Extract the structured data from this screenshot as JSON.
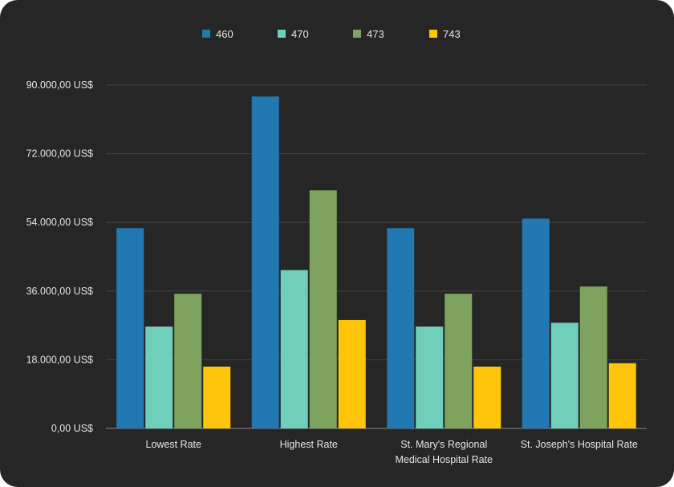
{
  "chart_data": {
    "type": "bar",
    "title": "",
    "xlabel": "",
    "ylabel": "",
    "categories": [
      [
        "Lowest Rate"
      ],
      [
        "Highest Rate"
      ],
      [
        "St. Mary's Regional",
        "Medical Hospital Rate"
      ],
      [
        "St. Joseph's Hospital Rate"
      ]
    ],
    "series": [
      {
        "name": "460",
        "color": "#2278b0",
        "values": [
          52500,
          87000,
          52500,
          55000
        ]
      },
      {
        "name": "470",
        "color": "#6fcfbb",
        "values": [
          26700,
          41500,
          26700,
          27700
        ]
      },
      {
        "name": "473",
        "color": "#7ea35e",
        "values": [
          35300,
          62400,
          35300,
          37200
        ]
      },
      {
        "name": "743",
        "color": "#ffc50a",
        "values": [
          16200,
          28400,
          16200,
          17100
        ]
      }
    ],
    "ylim": [
      0,
      90000
    ],
    "yticks": [
      0,
      18000,
      36000,
      54000,
      72000,
      90000
    ],
    "ytick_labels": [
      "0,00 US$",
      "18.000,00 US$",
      "36.000,00 US$",
      "54.000,00 US$",
      "72.000,00 US$",
      "90.000,00 US$"
    ],
    "legend_position": "top-center",
    "grid": true,
    "background": "#262626"
  }
}
